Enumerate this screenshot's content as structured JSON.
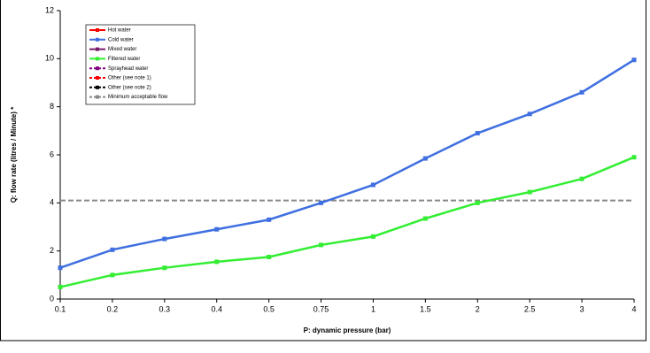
{
  "chart_data": {
    "type": "line",
    "x_label": "P: dynamic pressure (bar)",
    "y_label": "Q: flow rate (litres  / Minute) *",
    "categories": [
      "0.1",
      "0.2",
      "0.3",
      "0.4",
      "0.5",
      "0.75",
      "1",
      "1.5",
      "2",
      "2.5",
      "3",
      "4"
    ],
    "ylim": [
      0,
      12
    ],
    "yticks": [
      0,
      2,
      4,
      6,
      8,
      10,
      12
    ],
    "series": [
      {
        "name": "Hot water",
        "color": "#ff0000",
        "dash": false,
        "values": [
          null,
          null,
          null,
          null,
          null,
          null,
          null,
          null,
          null,
          null,
          null,
          null
        ]
      },
      {
        "name": "Cold water",
        "color": "#3f6fe0",
        "dash": false,
        "values": [
          1.3,
          2.05,
          2.5,
          2.9,
          3.3,
          4.0,
          4.75,
          5.85,
          6.9,
          7.7,
          8.6,
          9.95
        ]
      },
      {
        "name": "Mixed water",
        "color": "#7a1a6a",
        "dash": false,
        "values": [
          null,
          null,
          null,
          null,
          null,
          null,
          null,
          null,
          null,
          null,
          null,
          null
        ]
      },
      {
        "name": "Filtered water",
        "color": "#33ee33",
        "dash": false,
        "values": [
          0.5,
          1.0,
          1.3,
          1.55,
          1.75,
          2.25,
          2.6,
          3.35,
          4.0,
          4.45,
          5.0,
          5.9
        ]
      },
      {
        "name": "Sprayhead water",
        "color": "#800080",
        "dash": true,
        "values": [
          null,
          null,
          null,
          null,
          null,
          null,
          null,
          null,
          null,
          null,
          null,
          null
        ]
      },
      {
        "name": "Other (see note 1)",
        "color": "#ff0000",
        "dash": true,
        "values": [
          null,
          null,
          null,
          null,
          null,
          null,
          null,
          null,
          null,
          null,
          null,
          null
        ]
      },
      {
        "name": "Other (see note 2)",
        "color": "#000000",
        "dash": true,
        "values": [
          null,
          null,
          null,
          null,
          null,
          null,
          null,
          null,
          null,
          null,
          null,
          null
        ]
      }
    ],
    "reference_line": {
      "name": "Minimum acceptable flow",
      "color": "#888888",
      "value": 4.1
    }
  }
}
